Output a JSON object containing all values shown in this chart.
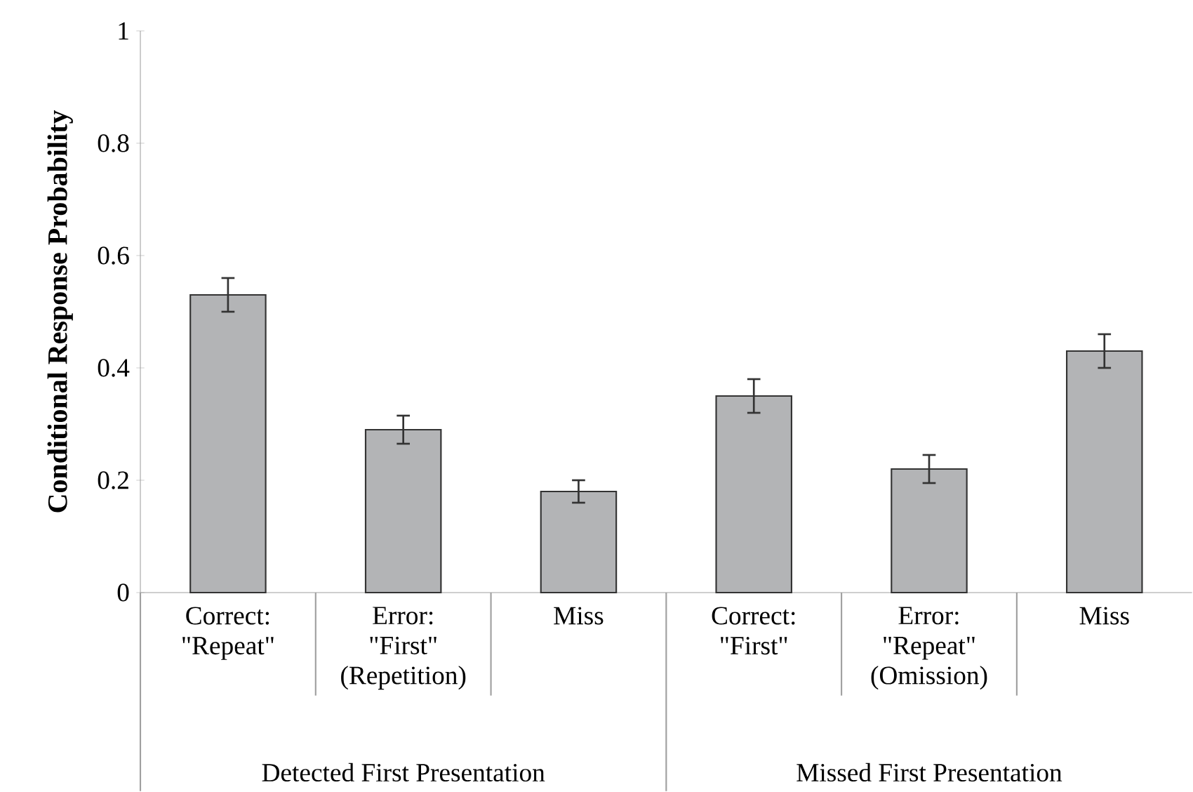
{
  "chart_data": {
    "type": "bar",
    "ylabel": "Conditional Response Probability",
    "categories": [
      "Correct: \"Repeat\"",
      "Error: \"First\" (Repetition)",
      "Miss",
      "Correct: \"First\"",
      "Error: \"Repeat\" (Omission)",
      "Miss"
    ],
    "values": [
      0.53,
      0.29,
      0.18,
      0.35,
      0.22,
      0.43
    ],
    "errors": [
      0.03,
      0.025,
      0.02,
      0.03,
      0.025,
      0.03
    ],
    "color": "#b3b4b6",
    "ylim": [
      0,
      1
    ],
    "yticks": [
      0,
      0.2,
      0.4,
      0.6,
      0.8,
      1
    ],
    "annotations": [
      "Detected First Presentation",
      "Missed First Presentation"
    ]
  }
}
